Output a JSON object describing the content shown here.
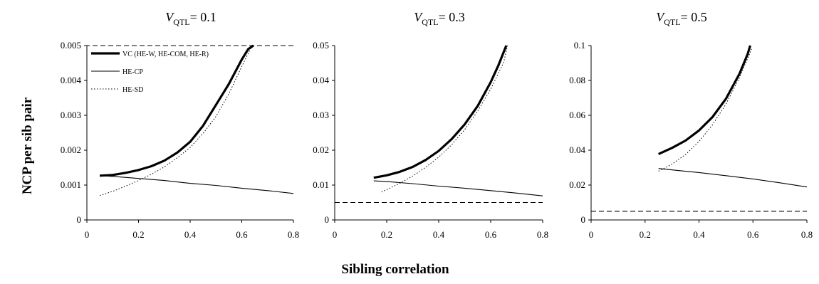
{
  "figure": {
    "ylabel": "NCP per sib pair",
    "xlabel": "Sibling correlation"
  },
  "legend": {
    "location": "upper-left of first panel",
    "items": [
      {
        "label": "VC (HE-W, HE-COM, HE-R)",
        "style": "thick-solid"
      },
      {
        "label": "HE-CP",
        "style": "thin-solid"
      },
      {
        "label": "HE-SD",
        "style": "dotted"
      }
    ]
  },
  "panels": [
    {
      "title_var": "V",
      "title_sub": "QTL",
      "title_rest": "= 0.1"
    },
    {
      "title_var": "V",
      "title_sub": "QTL",
      "title_rest": "= 0.3"
    },
    {
      "title_var": "V",
      "title_sub": "QTL",
      "title_rest": "= 0.5"
    }
  ],
  "chart_data": [
    {
      "type": "line",
      "xlabel": "Sibling correlation",
      "ylabel": "NCP per sib pair",
      "xlim": [
        0,
        0.8
      ],
      "ylim": [
        0,
        0.005
      ],
      "xticks": [
        "0",
        "0.2",
        "0.4",
        "0.6",
        "0.8"
      ],
      "yticks": [
        "0",
        "0.001",
        "0.002",
        "0.003",
        "0.004",
        "0.005"
      ],
      "grid": false,
      "series": [
        {
          "name": "VC (HE-W, HE-COM, HE-R)",
          "style": "thick-solid",
          "x": [
            0.05,
            0.1,
            0.15,
            0.2,
            0.25,
            0.3,
            0.35,
            0.4,
            0.45,
            0.5,
            0.55,
            0.6,
            0.625,
            0.645
          ],
          "y": [
            0.00127,
            0.00129,
            0.00135,
            0.00143,
            0.00154,
            0.0017,
            0.00193,
            0.00224,
            0.0027,
            0.0033,
            0.0039,
            0.0046,
            0.0049,
            0.005
          ]
        },
        {
          "name": "HE-CP",
          "style": "thin-solid",
          "x": [
            0.05,
            0.1,
            0.2,
            0.3,
            0.4,
            0.5,
            0.6,
            0.7,
            0.8
          ],
          "y": [
            0.00127,
            0.00125,
            0.00119,
            0.00113,
            0.00105,
            0.00099,
            0.00091,
            0.00084,
            0.00076
          ]
        },
        {
          "name": "HE-SD",
          "style": "dotted",
          "x": [
            0.05,
            0.1,
            0.15,
            0.2,
            0.25,
            0.3,
            0.35,
            0.4,
            0.45,
            0.5,
            0.55,
            0.6,
            0.64
          ],
          "y": [
            0.0007,
            0.00082,
            0.00097,
            0.00113,
            0.00131,
            0.00152,
            0.00178,
            0.00208,
            0.00248,
            0.00297,
            0.00362,
            0.0044,
            0.005
          ]
        },
        {
          "name": "",
          "style": "dashed",
          "x": [
            0.8,
            0.0
          ],
          "y": [
            0.005,
            0.005
          ]
        }
      ]
    },
    {
      "type": "line",
      "xlim": [
        0,
        0.8
      ],
      "ylim": [
        0,
        0.05
      ],
      "xticks": [
        "0",
        "0.2",
        "0.4",
        "0.6",
        "0.8"
      ],
      "yticks": [
        "0",
        "0.01",
        "0.02",
        "0.03",
        "0.04",
        "0.05"
      ],
      "grid": false,
      "series": [
        {
          "name": "VC (HE-W, HE-COM, HE-R)",
          "style": "thick-solid",
          "x": [
            0.15,
            0.2,
            0.25,
            0.3,
            0.35,
            0.4,
            0.45,
            0.5,
            0.55,
            0.6,
            0.63,
            0.66
          ],
          "y": [
            0.0121,
            0.0128,
            0.0138,
            0.0152,
            0.0172,
            0.0198,
            0.0232,
            0.0274,
            0.0327,
            0.0395,
            0.0444,
            0.05
          ]
        },
        {
          "name": "HE-CP",
          "style": "thin-solid",
          "x": [
            0.15,
            0.2,
            0.3,
            0.4,
            0.5,
            0.6,
            0.7,
            0.8
          ],
          "y": [
            0.0112,
            0.011,
            0.0104,
            0.0097,
            0.0091,
            0.0084,
            0.0077,
            0.0069
          ]
        },
        {
          "name": "HE-SD",
          "style": "dotted",
          "x": [
            0.18,
            0.2,
            0.25,
            0.3,
            0.35,
            0.4,
            0.45,
            0.5,
            0.55,
            0.6,
            0.65,
            0.665
          ],
          "y": [
            0.008,
            0.0087,
            0.0105,
            0.0126,
            0.0151,
            0.018,
            0.0216,
            0.0259,
            0.0312,
            0.0375,
            0.0452,
            0.05
          ]
        },
        {
          "name": "",
          "style": "dashed",
          "x": [
            0.0,
            0.8
          ],
          "y": [
            0.005,
            0.005
          ]
        }
      ]
    },
    {
      "type": "line",
      "xlim": [
        0,
        0.8
      ],
      "ylim": [
        0,
        0.1
      ],
      "xticks": [
        "0",
        "0.2",
        "0.4",
        "0.6",
        "0.8"
      ],
      "yticks": [
        "0",
        "0.02",
        "0.04",
        "0.06",
        "0.08",
        "0.1"
      ],
      "grid": false,
      "series": [
        {
          "name": "VC (HE-W, HE-COM, HE-R)",
          "style": "thick-solid",
          "x": [
            0.25,
            0.3,
            0.35,
            0.4,
            0.45,
            0.5,
            0.55,
            0.58,
            0.59
          ],
          "y": [
            0.0378,
            0.0413,
            0.0455,
            0.0513,
            0.059,
            0.0695,
            0.0838,
            0.095,
            0.1
          ]
        },
        {
          "name": "HE-CP",
          "style": "thin-solid",
          "x": [
            0.25,
            0.3,
            0.4,
            0.5,
            0.6,
            0.7,
            0.8
          ],
          "y": [
            0.0295,
            0.0287,
            0.0272,
            0.0254,
            0.0235,
            0.0213,
            0.0189
          ]
        },
        {
          "name": "HE-SD",
          "style": "dotted",
          "x": [
            0.25,
            0.3,
            0.35,
            0.4,
            0.45,
            0.5,
            0.55,
            0.595
          ],
          "y": [
            0.028,
            0.032,
            0.0375,
            0.045,
            0.0545,
            0.0665,
            0.0815,
            0.098
          ]
        },
        {
          "name": "",
          "style": "dashed",
          "x": [
            0.0,
            0.8
          ],
          "y": [
            0.005,
            0.005
          ]
        }
      ]
    }
  ]
}
